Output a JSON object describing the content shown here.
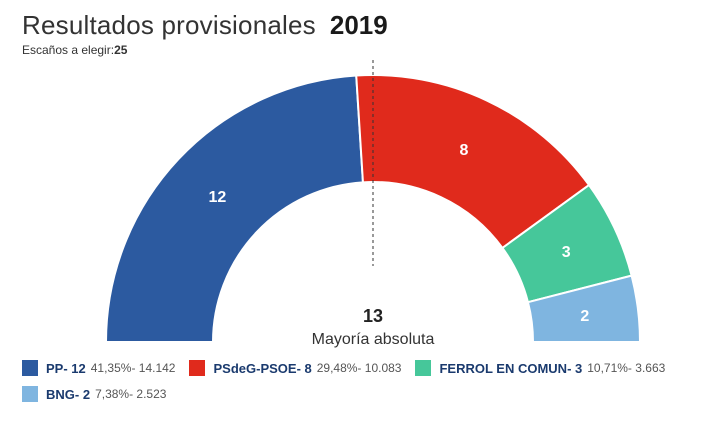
{
  "header": {
    "title": "Resultados provisionales",
    "year": "2019",
    "seats_label": "Escaños a elegir:",
    "seats_value": "25"
  },
  "chart_data": {
    "type": "pie",
    "variant": "half-donut (parliament)",
    "total_seats": 25,
    "majority_value": "13",
    "majority_label": "Mayoría absoluta",
    "series": [
      {
        "name": "PP",
        "seats": 12,
        "pct": "41,35%",
        "votes": "14.142",
        "color": "#2c5aa0"
      },
      {
        "name": "PSdeG-PSOE",
        "seats": 8,
        "pct": "29,48%",
        "votes": "10.083",
        "color": "#e02a1c"
      },
      {
        "name": "FERROL EN COMUN",
        "seats": 3,
        "pct": "10,71%",
        "votes": "3.663",
        "color": "#46c79a"
      },
      {
        "name": "BNG",
        "seats": 2,
        "pct": "7,38%",
        "votes": "2.523",
        "color": "#7fb5e0"
      }
    ]
  }
}
